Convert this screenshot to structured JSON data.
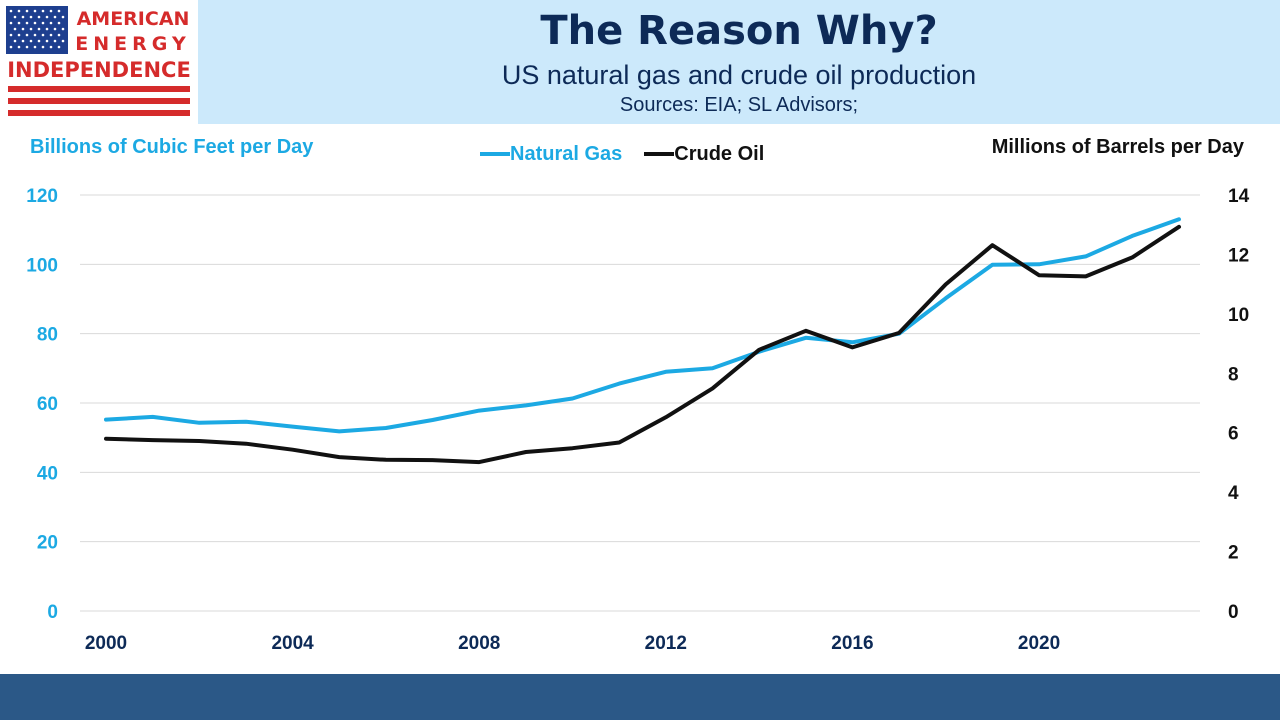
{
  "logo": {
    "line1": "AMERICAN",
    "line2": "ENERGY",
    "line3": "INDEPENDENCE",
    "colors": {
      "red": "#d52b2b",
      "blue": "#1e3f8f"
    }
  },
  "header": {
    "title": "The Reason Why?",
    "subtitle": "US natural gas and crude oil production",
    "sources": "Sources: EIA; SL Advisors;"
  },
  "chart_data": {
    "type": "line",
    "y_left_label": "Billions of Cubic Feet per Day",
    "y_right_label": "Millions of Barrels per Day",
    "y_left_range": [
      0,
      120
    ],
    "y_left_ticks": [
      "0",
      "20",
      "40",
      "60",
      "80",
      "100",
      "120"
    ],
    "y_right_range": [
      0,
      14
    ],
    "y_right_ticks": [
      "0",
      "2",
      "4",
      "6",
      "8",
      "10",
      "12",
      "14"
    ],
    "x_range": [
      2000,
      2023
    ],
    "x_ticks": [
      "2000",
      "2004",
      "2008",
      "2012",
      "2016",
      "2020"
    ],
    "grid": "horizontal",
    "legend": "top-center",
    "x": [
      2000,
      2001,
      2002,
      2003,
      2004,
      2005,
      2006,
      2007,
      2008,
      2009,
      2010,
      2011,
      2012,
      2013,
      2014,
      2015,
      2016,
      2017,
      2018,
      2019,
      2020,
      2021,
      2022,
      2023
    ],
    "series": [
      {
        "name": "Natural Gas",
        "axis": "left",
        "color": "#1ca9e3",
        "values": [
          55.2,
          56.0,
          54.3,
          54.6,
          53.2,
          51.8,
          52.8,
          55.1,
          57.8,
          59.3,
          61.3,
          65.6,
          69.0,
          70.0,
          74.8,
          78.8,
          77.5,
          80.0,
          90.2,
          99.9,
          100.0,
          102.3,
          108.2,
          113.0
        ],
        "label": "Natural Gas"
      },
      {
        "name": "Crude Oil",
        "axis": "right",
        "color": "#111111",
        "values": [
          5.8,
          5.75,
          5.72,
          5.63,
          5.43,
          5.18,
          5.09,
          5.08,
          5.01,
          5.35,
          5.48,
          5.67,
          6.52,
          7.49,
          8.79,
          9.43,
          8.87,
          9.36,
          10.99,
          12.31,
          11.3,
          11.26,
          11.9,
          12.93
        ],
        "label": "Crude Oil"
      }
    ]
  }
}
